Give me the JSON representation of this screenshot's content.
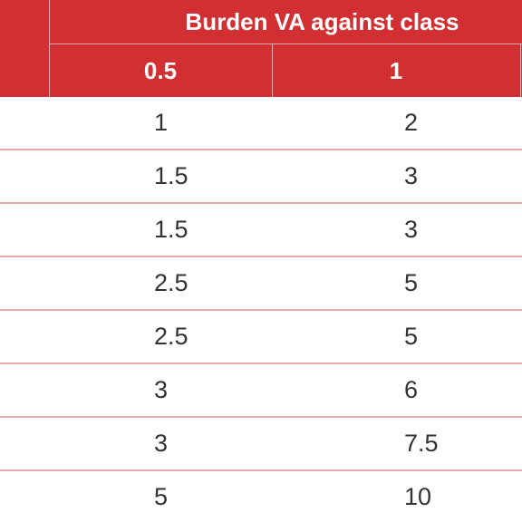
{
  "header": {
    "group_title": "Burden VA against class",
    "columns": [
      "0.5",
      "1",
      ""
    ]
  },
  "rows": [
    [
      "1",
      "2",
      ""
    ],
    [
      "1.5",
      "3",
      ""
    ],
    [
      "1.5",
      "3",
      ""
    ],
    [
      "2.5",
      "5",
      ""
    ],
    [
      "2.5",
      "5",
      ""
    ],
    [
      "3",
      "6",
      ""
    ],
    [
      "3",
      "7.5",
      ""
    ],
    [
      "5",
      "10",
      ""
    ]
  ],
  "colors": {
    "header_bg": "#d12f31",
    "header_text": "#ffffff",
    "row_divider": "#e7a9aa",
    "body_text": "#333333"
  }
}
